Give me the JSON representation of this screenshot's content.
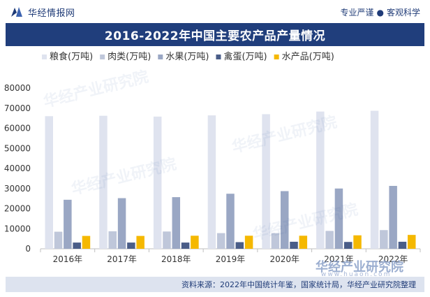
{
  "header": {
    "brand": "华经情报网",
    "tagline_left": "专业严谨",
    "tagline_right": "客观科学"
  },
  "title": "2016-2022年中国主要农产品产量情况",
  "watermark": {
    "text": "华经产业研究院",
    "sub": "www.huaon.com"
  },
  "source": "资料来源：2022年中国统计年鉴，国家统计局，华经产业研究院整理",
  "colors": {
    "title_bar": "#203e7c",
    "grain": "#dfe3ef",
    "meat": "#bfc7da",
    "fruit": "#9aa7c4",
    "eggs": "#4a5d88",
    "aquatic": "#f5b800"
  },
  "chart_data": {
    "type": "bar",
    "categories": [
      "2016年",
      "2017年",
      "2018年",
      "2019年",
      "2020年",
      "2021年",
      "2022年"
    ],
    "ylim": [
      0,
      80000
    ],
    "yticks": [
      0,
      10000,
      20000,
      30000,
      40000,
      50000,
      60000,
      70000,
      80000
    ],
    "legend_position": "top",
    "series": [
      {
        "name": "粮食(万吨)",
        "color": "#dfe3ef",
        "values": [
          66000,
          66200,
          65800,
          66400,
          67000,
          68300,
          68700
        ]
      },
      {
        "name": "肉类(万吨)",
        "color": "#bfc7da",
        "values": [
          8500,
          8700,
          8600,
          7800,
          7800,
          8900,
          9300
        ]
      },
      {
        "name": "水果(万吨)",
        "color": "#9aa7c4",
        "values": [
          24400,
          25200,
          25700,
          27400,
          28700,
          30000,
          31300
        ]
      },
      {
        "name": "禽蛋(万吨)",
        "color": "#4a5d88",
        "values": [
          3100,
          3100,
          3100,
          3300,
          3500,
          3400,
          3500
        ]
      },
      {
        "name": "水产品(万吨)",
        "color": "#f5b800",
        "values": [
          6400,
          6400,
          6500,
          6500,
          6500,
          6700,
          6900
        ]
      }
    ]
  }
}
